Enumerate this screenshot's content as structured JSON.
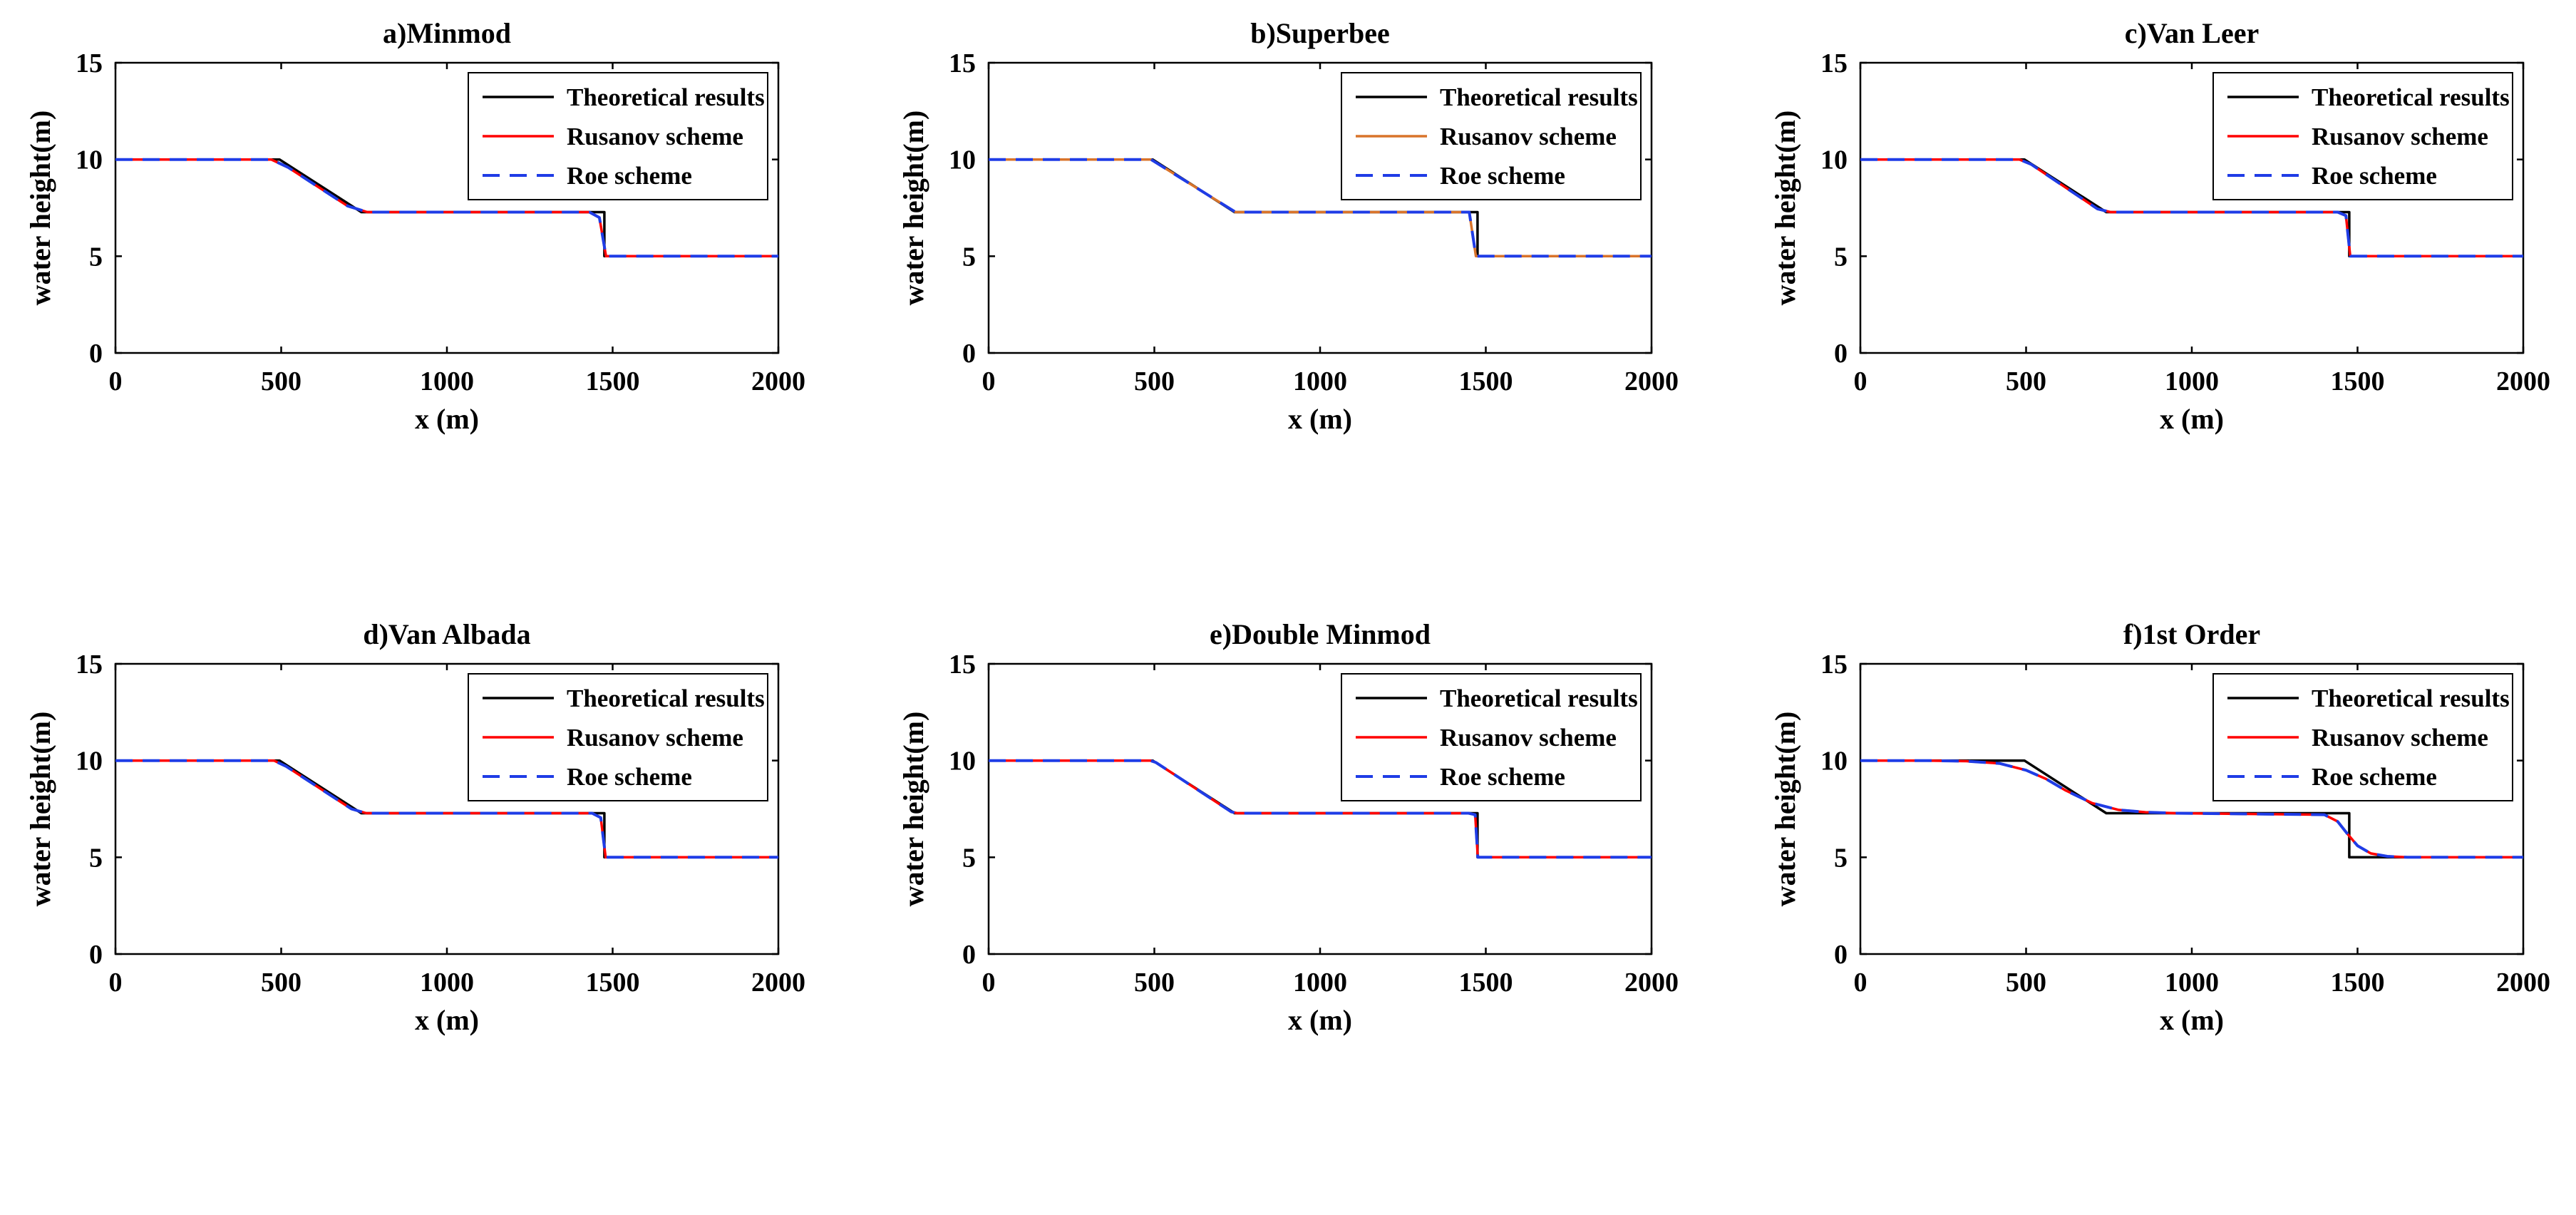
{
  "colors": {
    "theoretical": "#000000",
    "rusanov": "#ff0000",
    "rusanov_superbee": "#d9742b",
    "roe": "#1f3ce6"
  },
  "chart_data": [
    {
      "type": "line",
      "title": "a)Minmod",
      "xlabel": "x (m)",
      "ylabel": "water height(m)",
      "xlim": [
        0,
        2000
      ],
      "ylim": [
        0,
        15
      ],
      "xticks": [
        0,
        500,
        1000,
        1500,
        2000
      ],
      "yticks": [
        0,
        5,
        10,
        15
      ],
      "grid": false,
      "legend": "top-right",
      "series": [
        {
          "name": "Theoretical results",
          "style": "solid",
          "color": "#000000",
          "x": [
            0,
            495,
            742,
            1475,
            1475,
            2000
          ],
          "y": [
            10,
            10,
            7.28,
            7.28,
            5,
            5
          ]
        },
        {
          "name": "Rusanov scheme",
          "style": "solid",
          "color": "#ff0000",
          "x": [
            0,
            470,
            520,
            700,
            760,
            1430,
            1460,
            1480,
            2000
          ],
          "y": [
            10,
            10,
            9.6,
            7.6,
            7.28,
            7.28,
            7.0,
            5,
            5
          ]
        },
        {
          "name": "Roe scheme",
          "style": "dashed",
          "color": "#1f3ce6",
          "x": [
            0,
            470,
            520,
            700,
            760,
            1430,
            1460,
            1480,
            2000
          ],
          "y": [
            10,
            10,
            9.6,
            7.6,
            7.28,
            7.28,
            7.0,
            5,
            5
          ]
        }
      ]
    },
    {
      "type": "line",
      "title": "b)Superbee",
      "xlabel": "x (m)",
      "ylabel": "water height(m)",
      "xlim": [
        0,
        2000
      ],
      "ylim": [
        0,
        15
      ],
      "xticks": [
        0,
        500,
        1000,
        1500,
        2000
      ],
      "yticks": [
        0,
        5,
        10,
        15
      ],
      "grid": false,
      "legend": "top-right",
      "series": [
        {
          "name": "Theoretical results",
          "style": "solid",
          "color": "#000000",
          "x": [
            0,
            495,
            742,
            1475,
            1475,
            2000
          ],
          "y": [
            10,
            10,
            7.28,
            7.28,
            5,
            5
          ]
        },
        {
          "name": "Rusanov scheme",
          "style": "solid",
          "color": "#d9742b",
          "x": [
            0,
            490,
            745,
            1450,
            1470,
            2000
          ],
          "y": [
            10,
            10,
            7.28,
            7.28,
            5,
            5
          ]
        },
        {
          "name": "Roe scheme",
          "style": "dashed",
          "color": "#1f3ce6",
          "x": [
            0,
            490,
            745,
            1450,
            1470,
            2000
          ],
          "y": [
            10,
            10,
            7.28,
            7.28,
            5,
            5
          ]
        }
      ]
    },
    {
      "type": "line",
      "title": "c)Van Leer",
      "xlabel": "x (m)",
      "ylabel": "water height(m)",
      "xlim": [
        0,
        2000
      ],
      "ylim": [
        0,
        15
      ],
      "xticks": [
        0,
        500,
        1000,
        1500,
        2000
      ],
      "yticks": [
        0,
        5,
        10,
        15
      ],
      "grid": false,
      "legend": "top-right",
      "series": [
        {
          "name": "Theoretical results",
          "style": "solid",
          "color": "#000000",
          "x": [
            0,
            495,
            742,
            1475,
            1475,
            2000
          ],
          "y": [
            10,
            10,
            7.28,
            7.28,
            5,
            5
          ]
        },
        {
          "name": "Rusanov scheme",
          "style": "solid",
          "color": "#ff0000",
          "x": [
            0,
            480,
            515,
            715,
            755,
            1440,
            1465,
            1478,
            2000
          ],
          "y": [
            10,
            10,
            9.75,
            7.45,
            7.28,
            7.28,
            7.1,
            5,
            5
          ]
        },
        {
          "name": "Roe scheme",
          "style": "dashed",
          "color": "#1f3ce6",
          "x": [
            0,
            480,
            515,
            715,
            755,
            1440,
            1465,
            1478,
            2000
          ],
          "y": [
            10,
            10,
            9.75,
            7.45,
            7.28,
            7.28,
            7.1,
            5,
            5
          ]
        }
      ]
    },
    {
      "type": "line",
      "title": "d)Van Albada",
      "xlabel": "x (m)",
      "ylabel": "water height(m)",
      "xlim": [
        0,
        2000
      ],
      "ylim": [
        0,
        15
      ],
      "xticks": [
        0,
        500,
        1000,
        1500,
        2000
      ],
      "yticks": [
        0,
        5,
        10,
        15
      ],
      "grid": false,
      "legend": "top-right",
      "series": [
        {
          "name": "Theoretical results",
          "style": "solid",
          "color": "#000000",
          "x": [
            0,
            495,
            742,
            1475,
            1475,
            2000
          ],
          "y": [
            10,
            10,
            7.28,
            7.28,
            5,
            5
          ]
        },
        {
          "name": "Rusanov scheme",
          "style": "solid",
          "color": "#ff0000",
          "x": [
            0,
            478,
            515,
            712,
            757,
            1438,
            1464,
            1479,
            2000
          ],
          "y": [
            10,
            10,
            9.7,
            7.5,
            7.28,
            7.28,
            7.05,
            5,
            5
          ]
        },
        {
          "name": "Roe scheme",
          "style": "dashed",
          "color": "#1f3ce6",
          "x": [
            0,
            478,
            515,
            712,
            757,
            1438,
            1464,
            1479,
            2000
          ],
          "y": [
            10,
            10,
            9.7,
            7.5,
            7.28,
            7.28,
            7.05,
            5,
            5
          ]
        }
      ]
    },
    {
      "type": "line",
      "title": "e)Double Minmod",
      "xlabel": "x (m)",
      "ylabel": "water height(m)",
      "xlim": [
        0,
        2000
      ],
      "ylim": [
        0,
        15
      ],
      "xticks": [
        0,
        500,
        1000,
        1500,
        2000
      ],
      "yticks": [
        0,
        5,
        10,
        15
      ],
      "grid": false,
      "legend": "top-right",
      "series": [
        {
          "name": "Theoretical results",
          "style": "solid",
          "color": "#000000",
          "x": [
            0,
            495,
            742,
            1475,
            1475,
            2000
          ],
          "y": [
            10,
            10,
            7.28,
            7.28,
            5,
            5
          ]
        },
        {
          "name": "Rusanov scheme",
          "style": "solid",
          "color": "#ff0000",
          "x": [
            0,
            488,
            505,
            732,
            750,
            1448,
            1468,
            1476,
            2000
          ],
          "y": [
            10,
            10,
            9.9,
            7.35,
            7.28,
            7.28,
            7.2,
            5,
            5
          ]
        },
        {
          "name": "Roe scheme",
          "style": "dashed",
          "color": "#1f3ce6",
          "x": [
            0,
            488,
            505,
            732,
            750,
            1448,
            1468,
            1476,
            2000
          ],
          "y": [
            10,
            10,
            9.9,
            7.35,
            7.28,
            7.28,
            7.2,
            5,
            5
          ]
        }
      ]
    },
    {
      "type": "line",
      "title": "f)1st Order",
      "xlabel": "x (m)",
      "ylabel": "water height(m)",
      "xlim": [
        0,
        2000
      ],
      "ylim": [
        0,
        15
      ],
      "xticks": [
        0,
        500,
        1000,
        1500,
        2000
      ],
      "yticks": [
        0,
        5,
        10,
        15
      ],
      "grid": false,
      "legend": "top-right",
      "series": [
        {
          "name": "Theoretical results",
          "style": "solid",
          "color": "#000000",
          "x": [
            0,
            495,
            742,
            1475,
            1475,
            2000
          ],
          "y": [
            10,
            10,
            7.28,
            7.28,
            5,
            5
          ]
        },
        {
          "name": "Rusanov scheme",
          "style": "solid",
          "color": "#ff0000",
          "x": [
            0,
            200,
            320,
            420,
            500,
            560,
            620,
            700,
            780,
            860,
            950,
            1400,
            1440,
            1470,
            1500,
            1540,
            1590,
            1650,
            2000
          ],
          "y": [
            10,
            10,
            9.97,
            9.85,
            9.5,
            9.05,
            8.45,
            7.8,
            7.45,
            7.33,
            7.28,
            7.2,
            6.85,
            6.2,
            5.6,
            5.2,
            5.05,
            5,
            5
          ]
        },
        {
          "name": "Roe scheme",
          "style": "dashed",
          "color": "#1f3ce6",
          "x": [
            0,
            200,
            320,
            420,
            500,
            560,
            620,
            700,
            780,
            860,
            950,
            1400,
            1440,
            1470,
            1500,
            1540,
            1590,
            1650,
            2000
          ],
          "y": [
            10,
            10,
            9.97,
            9.85,
            9.5,
            9.05,
            8.45,
            7.8,
            7.45,
            7.33,
            7.28,
            7.2,
            6.85,
            6.2,
            5.6,
            5.2,
            5.05,
            5,
            5
          ]
        }
      ]
    }
  ]
}
